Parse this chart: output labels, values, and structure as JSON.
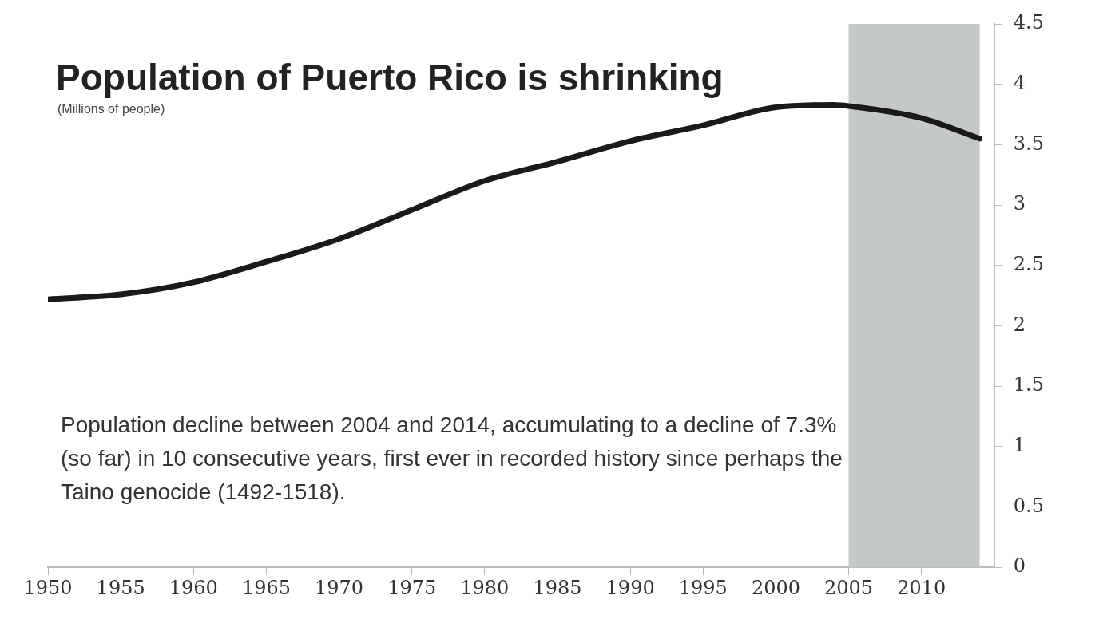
{
  "chart_data": {
    "type": "line",
    "title": "Population of Puerto Rico is shrinking",
    "subtitle": "(Millions of people)",
    "annotations": [
      "Population decline between 2004 and 2014, accumulating to a decline of 7.3% (so far) in 10 consecutive years, first ever in recorded history since perhaps the Taino genocide (1492-1518)."
    ],
    "x": [
      1950,
      1955,
      1960,
      1965,
      1970,
      1975,
      1980,
      1985,
      1990,
      1995,
      2000,
      2004,
      2005,
      2010,
      2014
    ],
    "series": [
      {
        "color": "#1a1a1a",
        "values": [
          2.22,
          2.26,
          2.36,
          2.53,
          2.72,
          2.96,
          3.2,
          3.36,
          3.53,
          3.66,
          3.81,
          3.83,
          3.82,
          3.72,
          3.55
        ]
      }
    ],
    "xlim": [
      1950,
      2015
    ],
    "xticks": [
      1950,
      1955,
      1960,
      1965,
      1970,
      1975,
      1980,
      1985,
      1990,
      1995,
      2000,
      2005,
      2010
    ],
    "ylim": [
      0,
      4.5
    ],
    "yticks": [
      0,
      0.5,
      1,
      1.5,
      2,
      2.5,
      3,
      3.5,
      4,
      4.5
    ],
    "bands": [
      {
        "axis": "x",
        "from": 2005,
        "to": 2014,
        "color": "#c4c8c8"
      }
    ],
    "grid": false,
    "legend": false,
    "marker": "none",
    "line_style": "solid"
  }
}
